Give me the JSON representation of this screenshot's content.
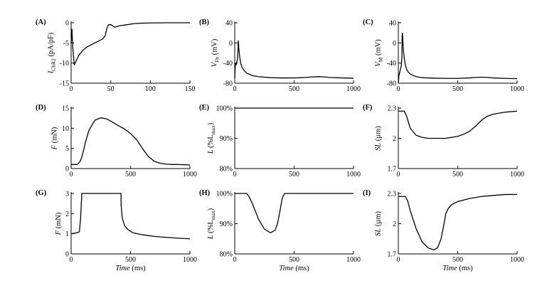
{
  "figure_title": "",
  "chart_data": [
    {
      "id": "A",
      "type": "line",
      "letter": "(A)",
      "ylabel_main": "I",
      "ylabel_sub": "ChR2",
      "ylabel_rest": " (pA/pF)",
      "xlabel": "",
      "xlabel_unit": "",
      "xlim": [
        0,
        150
      ],
      "ylim": [
        -15,
        0
      ],
      "xticks": [
        0,
        50,
        100,
        150
      ],
      "xtick_labels": [
        "0",
        "50",
        "100",
        "150"
      ],
      "yticks": [
        -15,
        -10,
        -5,
        0
      ],
      "ytick_labels": [
        "-15",
        "-10",
        "-5",
        "0"
      ],
      "series": [
        {
          "name": "I_ChR2",
          "x": [
            0,
            1,
            2,
            4,
            6,
            10,
            15,
            20,
            30,
            40,
            43,
            45,
            47,
            50,
            55,
            60,
            70,
            80,
            90,
            100,
            120,
            150
          ],
          "y": [
            -5,
            -1.5,
            -6,
            -10.5,
            -9.6,
            -8,
            -6.8,
            -6,
            -5,
            -4,
            -3.2,
            -1.5,
            -0.5,
            -0.45,
            -1.1,
            -0.8,
            -0.5,
            -0.2,
            -0.1,
            -0.05,
            0,
            0
          ]
        }
      ]
    },
    {
      "id": "B",
      "type": "line",
      "letter": "(B)",
      "ylabel_main": "V",
      "ylabel_sub": "Fb",
      "ylabel_rest": " (mV)",
      "xlabel": "",
      "xlabel_unit": "",
      "xlim": [
        0,
        1000
      ],
      "ylim": [
        -80,
        40
      ],
      "xticks": [
        0,
        500,
        1000
      ],
      "xtick_labels": [
        "0",
        "500",
        "1000"
      ],
      "yticks": [
        -80,
        -40,
        0,
        40
      ],
      "ytick_labels": [
        "-80",
        "-40",
        "0",
        "40"
      ],
      "series": [
        {
          "name": "V_Fb",
          "x": [
            0,
            5,
            10,
            15,
            20,
            25,
            28,
            30,
            35,
            40,
            45,
            50,
            60,
            80,
            100,
            150,
            200,
            300,
            400,
            500,
            600,
            650,
            700,
            750,
            800,
            900,
            1000
          ],
          "y": [
            -70,
            -40,
            -45,
            -40,
            -35,
            -28,
            -10,
            5,
            -12,
            -24,
            -33,
            -40,
            -48,
            -55,
            -60,
            -65,
            -67,
            -69,
            -69.5,
            -69.5,
            -68.5,
            -67.5,
            -67,
            -67.5,
            -68.5,
            -69.5,
            -70
          ]
        }
      ]
    },
    {
      "id": "C",
      "type": "line",
      "letter": "(C)",
      "ylabel_main": "V",
      "ylabel_sub": "M",
      "ylabel_rest": " (mV)",
      "xlabel": "",
      "xlabel_unit": "",
      "xlim": [
        0,
        1000
      ],
      "ylim": [
        -80,
        40
      ],
      "xticks": [
        0,
        500,
        1000
      ],
      "xtick_labels": [
        "0",
        "500",
        "1000"
      ],
      "yticks": [
        -80,
        -40,
        0,
        40
      ],
      "ytick_labels": [
        "-80",
        "-40",
        "0",
        "40"
      ],
      "series": [
        {
          "name": "V_M",
          "x": [
            0,
            5,
            10,
            15,
            20,
            25,
            30,
            32,
            35,
            38,
            40,
            45,
            50,
            55,
            60,
            70,
            80,
            100,
            150,
            200,
            300,
            400,
            500,
            600,
            650,
            700,
            750,
            800,
            900,
            1000
          ],
          "y": [
            -80,
            -65,
            -60,
            -55,
            -50,
            -45,
            -30,
            15,
            20,
            5,
            -5,
            -20,
            -30,
            -38,
            -45,
            -52,
            -57,
            -62,
            -67,
            -69,
            -70,
            -70.5,
            -70.5,
            -69.5,
            -68.5,
            -68,
            -68.5,
            -69.5,
            -70.5,
            -71
          ]
        }
      ]
    },
    {
      "id": "D",
      "type": "line",
      "letter": "(D)",
      "ylabel_main": "F",
      "ylabel_sub": "",
      "ylabel_rest": " (mN)",
      "xlabel": "",
      "xlabel_unit": "",
      "xlim": [
        0,
        1000
      ],
      "ylim": [
        0,
        15
      ],
      "xticks": [
        0,
        500,
        1000
      ],
      "xtick_labels": [
        "0",
        "500",
        "1000"
      ],
      "yticks": [
        0,
        5,
        10,
        15
      ],
      "ytick_labels": [
        "0",
        "5",
        "10",
        "15"
      ],
      "series": [
        {
          "name": "F",
          "x": [
            0,
            50,
            60,
            80,
            100,
            120,
            150,
            200,
            250,
            300,
            350,
            400,
            450,
            500,
            550,
            600,
            650,
            700,
            750,
            800,
            850,
            900,
            1000
          ],
          "y": [
            1,
            1,
            1.2,
            2,
            4,
            6.5,
            9.5,
            12,
            12.6,
            12.3,
            11.5,
            10.6,
            9.8,
            8.7,
            7.2,
            5,
            3,
            1.8,
            1.3,
            1.1,
            1,
            1,
            0.9
          ]
        }
      ]
    },
    {
      "id": "E",
      "type": "line",
      "letter": "(E)",
      "ylabel_main": "L",
      "ylabel_sub": "",
      "ylabel_rest": " (%L",
      "ylabel_sub2": "max",
      "ylabel_end": ")",
      "xlabel": "",
      "xlabel_unit": "",
      "xlim": [
        0,
        1000
      ],
      "ylim": [
        80,
        100
      ],
      "xticks": [
        0,
        500,
        1000
      ],
      "xtick_labels": [
        "0",
        "500",
        "1000"
      ],
      "yticks": [
        80,
        90,
        100
      ],
      "ytick_labels": [
        "80%",
        "90%",
        "100%"
      ],
      "series": [
        {
          "name": "L",
          "x": [
            0,
            1000
          ],
          "y": [
            100,
            100
          ]
        }
      ]
    },
    {
      "id": "F",
      "type": "line",
      "letter": "(F)",
      "ylabel_main": "SL",
      "ylabel_sub": "",
      "ylabel_rest": " (µm)",
      "xlabel": "",
      "xlabel_unit": "",
      "xlim": [
        0,
        1000
      ],
      "ylim": [
        1.7,
        2.3
      ],
      "xticks": [
        0,
        500,
        1000
      ],
      "xtick_labels": [
        "0",
        "500",
        "1000"
      ],
      "yticks": [
        1.7,
        2,
        2.3
      ],
      "ytick_labels": [
        "1.7",
        "2",
        "2.3"
      ],
      "series": [
        {
          "name": "SL",
          "x": [
            0,
            50,
            70,
            100,
            150,
            200,
            250,
            300,
            400,
            500,
            550,
            600,
            650,
            700,
            750,
            800,
            900,
            1000
          ],
          "y": [
            2.27,
            2.27,
            2.22,
            2.1,
            2.03,
            2.01,
            2.0,
            2.0,
            2.0,
            2.02,
            2.04,
            2.07,
            2.12,
            2.18,
            2.22,
            2.24,
            2.26,
            2.27
          ]
        }
      ]
    },
    {
      "id": "G",
      "type": "line",
      "letter": "(G)",
      "ylabel_main": "F",
      "ylabel_sub": "",
      "ylabel_rest": " (mN)",
      "xlabel": "Time",
      "xlabel_unit": " (ms)",
      "xlim": [
        0,
        1000
      ],
      "ylim": [
        0,
        3
      ],
      "xticks": [
        0,
        500,
        1000
      ],
      "xtick_labels": [
        "0",
        "500",
        "1000"
      ],
      "yticks": [
        0,
        1,
        2,
        3
      ],
      "ytick_labels": [
        "0",
        "1",
        "2",
        "3"
      ],
      "series": [
        {
          "name": "F",
          "x": [
            0,
            50,
            70,
            80,
            90,
            100,
            420,
            421,
            430,
            450,
            480,
            520,
            600,
            700,
            800,
            900,
            1000
          ],
          "y": [
            1,
            1.05,
            1.1,
            1.8,
            3,
            3,
            3,
            2.4,
            1.8,
            1.4,
            1.2,
            1.05,
            0.95,
            0.87,
            0.82,
            0.78,
            0.75
          ]
        }
      ]
    },
    {
      "id": "H",
      "type": "line",
      "letter": "(H)",
      "ylabel_main": "L",
      "ylabel_sub": "",
      "ylabel_rest": " (%L",
      "ylabel_sub2": "max",
      "ylabel_end": ")",
      "xlabel": "Time",
      "xlabel_unit": " (ms)",
      "xlim": [
        0,
        1000
      ],
      "ylim": [
        80,
        100
      ],
      "xticks": [
        0,
        500,
        1000
      ],
      "xtick_labels": [
        "0",
        "500",
        "1000"
      ],
      "yticks": [
        80,
        90,
        100
      ],
      "ytick_labels": [
        "80%",
        "90%",
        "100%"
      ],
      "series": [
        {
          "name": "L",
          "x": [
            0,
            100,
            120,
            150,
            200,
            250,
            300,
            340,
            360,
            380,
            400,
            420,
            1000
          ],
          "y": [
            100,
            100,
            99,
            96.5,
            91.5,
            88.2,
            87,
            87.8,
            90,
            94,
            98.5,
            100,
            100
          ]
        }
      ]
    },
    {
      "id": "I",
      "type": "line",
      "letter": "(I)",
      "ylabel_main": "SL",
      "ylabel_sub": "",
      "ylabel_rest": " (µm)",
      "xlabel": "Time",
      "xlabel_unit": " (ms)",
      "xlim": [
        0,
        1000
      ],
      "ylim": [
        1.7,
        2.3
      ],
      "xticks": [
        0,
        500,
        1000
      ],
      "xtick_labels": [
        "0",
        "500",
        "1000"
      ],
      "yticks": [
        1.7,
        2,
        2.3
      ],
      "ytick_labels": [
        "1.7",
        "2",
        "2.3"
      ],
      "series": [
        {
          "name": "SL",
          "x": [
            0,
            60,
            80,
            100,
            150,
            200,
            250,
            300,
            330,
            360,
            380,
            400,
            420,
            450,
            500,
            600,
            700,
            800,
            900,
            1000
          ],
          "y": [
            2.27,
            2.27,
            2.22,
            2.13,
            1.95,
            1.82,
            1.76,
            1.74,
            1.76,
            1.85,
            1.97,
            2.1,
            2.15,
            2.19,
            2.22,
            2.25,
            2.27,
            2.28,
            2.29,
            2.29
          ]
        }
      ]
    }
  ]
}
